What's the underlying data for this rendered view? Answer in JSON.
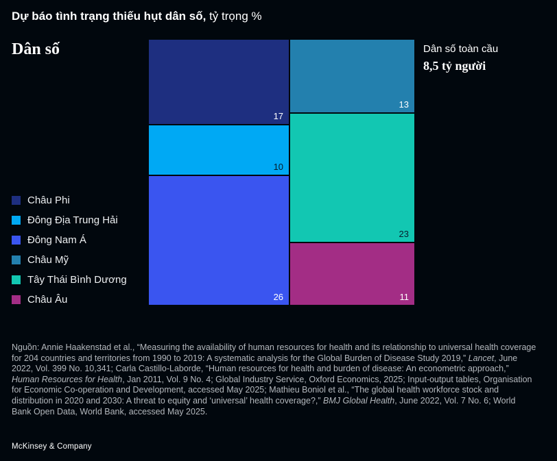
{
  "header": {
    "title_bold": "Dự báo tình trạng thiếu hụt dân số,",
    "title_rest": " tỷ trọng %"
  },
  "section": {
    "label": "Dân số"
  },
  "annotation": {
    "line1": "Dân số toàn cầu",
    "line2": "8,5 tỷ người"
  },
  "chart_data": {
    "type": "marimekko",
    "title": "Dự báo tình trạng thiếu hụt dân số",
    "unit": "tỷ trọng %",
    "total_note": "Dân số toàn cầu 8,5 tỷ người",
    "grand_total_percent": 100,
    "legend_position": "left",
    "columns": [
      {
        "segments": [
          {
            "label": "Châu Phi",
            "value": 17,
            "color": "#1e2f80",
            "text_color": "#ffffff"
          },
          {
            "label": "Đông Địa Trung Hải",
            "value": 10,
            "color": "#00a9f4",
            "text_color": "#051c2c"
          },
          {
            "label": "Đông Nam Á",
            "value": 26,
            "color": "#3a55f0",
            "text_color": "#ffffff"
          }
        ]
      },
      {
        "segments": [
          {
            "label": "Châu Mỹ",
            "value": 13,
            "color": "#2380ae",
            "text_color": "#ffffff"
          },
          {
            "label": "Tây Thái Bình Dương",
            "value": 23,
            "color": "#12c7b2",
            "text_color": "#051c2c"
          },
          {
            "label": "Châu Âu",
            "value": 11,
            "color": "#a32d85",
            "text_color": "#ffffff"
          }
        ]
      }
    ]
  },
  "source": {
    "segments": [
      {
        "italic": false,
        "text": "Nguồn: Annie Haakenstad et al., “Measuring the availability of human resources for health and its relationship to universal health coverage for 204 countries and territories from 1990 to 2019: A systematic analysis for the Global Burden of Disease Study 2019,” "
      },
      {
        "italic": true,
        "text": "Lancet"
      },
      {
        "italic": false,
        "text": ", June 2022, Vol. 399 No. 10,341; Carla Castillo-Laborde, “Human resources for health and burden of disease: An econometric approach,” "
      },
      {
        "italic": true,
        "text": "Human Resources for Health"
      },
      {
        "italic": false,
        "text": ", Jan 2011, Vol. 9 No. 4; Global Industry Service, Oxford Economics, 2025; Input-output tables, Organisation for Economic Co-operation and Development, accessed May 2025; Mathieu Boniol et al., “The global health workforce stock and distribution in 2020 and 2030: A threat to equity and ‘universal’ health coverage?,” "
      },
      {
        "italic": true,
        "text": "BMJ Global Health"
      },
      {
        "italic": false,
        "text": ", June 2022, Vol. 7 No. 6; World Bank Open Data, World Bank, accessed May 2025."
      }
    ]
  },
  "footer": {
    "brand": "McKinsey & Company"
  }
}
